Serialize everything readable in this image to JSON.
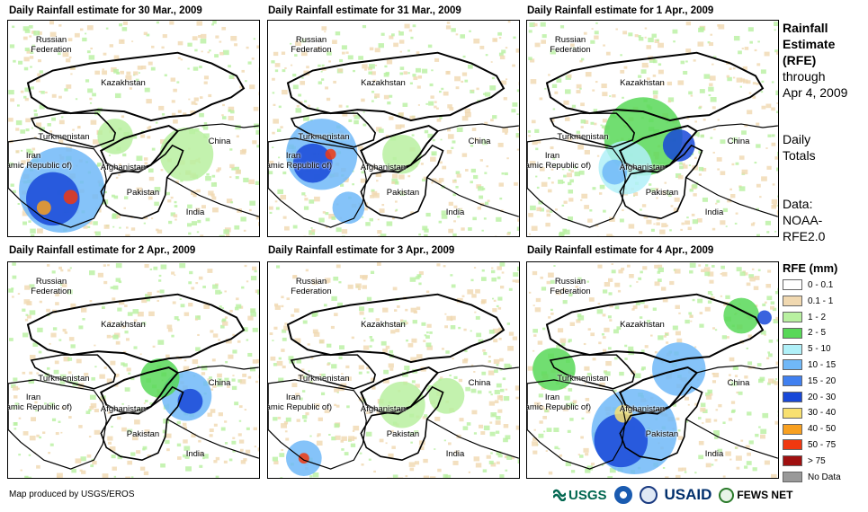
{
  "panels": [
    {
      "title": "Daily Rainfall estimate for 30 Mar., 2009"
    },
    {
      "title": "Daily Rainfall estimate for 31 Mar., 2009"
    },
    {
      "title": "Daily Rainfall estimate for 1 Apr., 2009"
    },
    {
      "title": "Daily Rainfall estimate for 2 Apr., 2009"
    },
    {
      "title": "Daily Rainfall estimate for 3 Apr., 2009"
    },
    {
      "title": "Daily Rainfall estimate for 4 Apr., 2009"
    }
  ],
  "map_labels": {
    "russia": "Russian\nFederation",
    "kazakhstan": "Kazakhstan",
    "turkmenistan": "Turkmenistan",
    "china": "China",
    "iran": "Iran\n(Islamic Republic of)",
    "afghanistan": "Afghanistan",
    "pakistan": "Pakistan",
    "india": "India"
  },
  "side": {
    "title_line1": "Rainfall",
    "title_line2": "Estimate",
    "title_line3": "(RFE)",
    "through": "through",
    "date": "Apr 4, 2009",
    "daily1": "Daily",
    "daily2": "Totals",
    "data1": "Data:",
    "data2": "NOAA-",
    "data3": "RFE2.0"
  },
  "legend": {
    "title": "RFE (mm)",
    "items": [
      {
        "label": "0 - 0.1",
        "color": "#ffffff"
      },
      {
        "label": "0.1 - 1",
        "color": "#f0d8b0"
      },
      {
        "label": "1 - 2",
        "color": "#b8f0a0"
      },
      {
        "label": "2 - 5",
        "color": "#58d858"
      },
      {
        "label": "5 - 10",
        "color": "#b0f0f8"
      },
      {
        "label": "10 - 15",
        "color": "#70b8f8"
      },
      {
        "label": "15 - 20",
        "color": "#4080f0"
      },
      {
        "label": "20 - 30",
        "color": "#1848d8"
      },
      {
        "label": "30 - 40",
        "color": "#f8e070"
      },
      {
        "label": "40 - 50",
        "color": "#f8a020"
      },
      {
        "label": "50 - 75",
        "color": "#f03810"
      },
      {
        "label": "> 75",
        "color": "#a01010"
      },
      {
        "label": "No Data",
        "color": "#999999"
      }
    ]
  },
  "footer": {
    "credit": "Map produced by USGS/EROS",
    "logo_usgs": "USGS",
    "logo_usaid": "USAID",
    "logo_fews": "FEWS NET"
  }
}
